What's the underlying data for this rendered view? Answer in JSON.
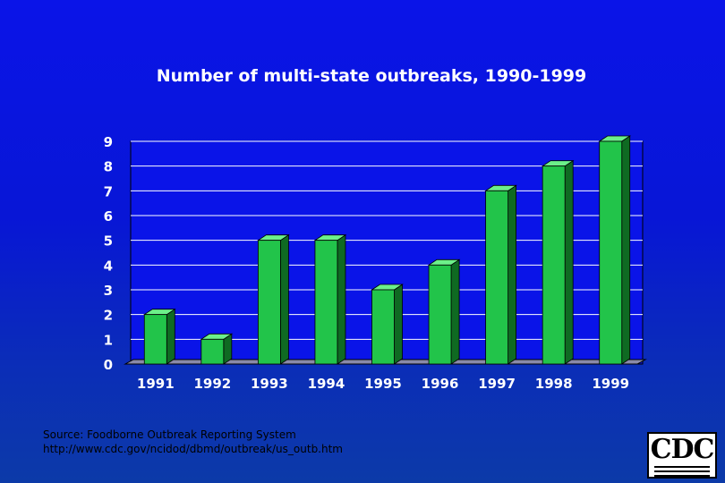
{
  "chart_data": {
    "type": "bar",
    "title": "Number of multi-state outbreaks, 1990-1999",
    "categories": [
      "1991",
      "1992",
      "1993",
      "1994",
      "1995",
      "1996",
      "1997",
      "1998",
      "1999"
    ],
    "values": [
      2,
      1,
      5,
      5,
      3,
      4,
      7,
      8,
      9
    ],
    "y_ticks": [
      "0",
      "1",
      "2",
      "3",
      "4",
      "5",
      "6",
      "7",
      "8",
      "9"
    ],
    "ylim": [
      0,
      9
    ],
    "grid": true,
    "bar_color": "#22c44a",
    "bar_style": "3d"
  },
  "source": {
    "line1": "Source:  Foodborne Outbreak Reporting System",
    "line2": "http://www.cdc.gov/ncidod/dbmd/outbreak/us_outb.htm"
  },
  "logo": {
    "text": "CDC"
  },
  "colors": {
    "background_top": "#0a14e8",
    "background_bottom": "#0c3aa8",
    "plot_background": "#0a14e8",
    "floor": "#8a8aa8",
    "bar": "#22c44a",
    "bar_side": "#0f6a22",
    "bar_top": "#6cf08a"
  }
}
